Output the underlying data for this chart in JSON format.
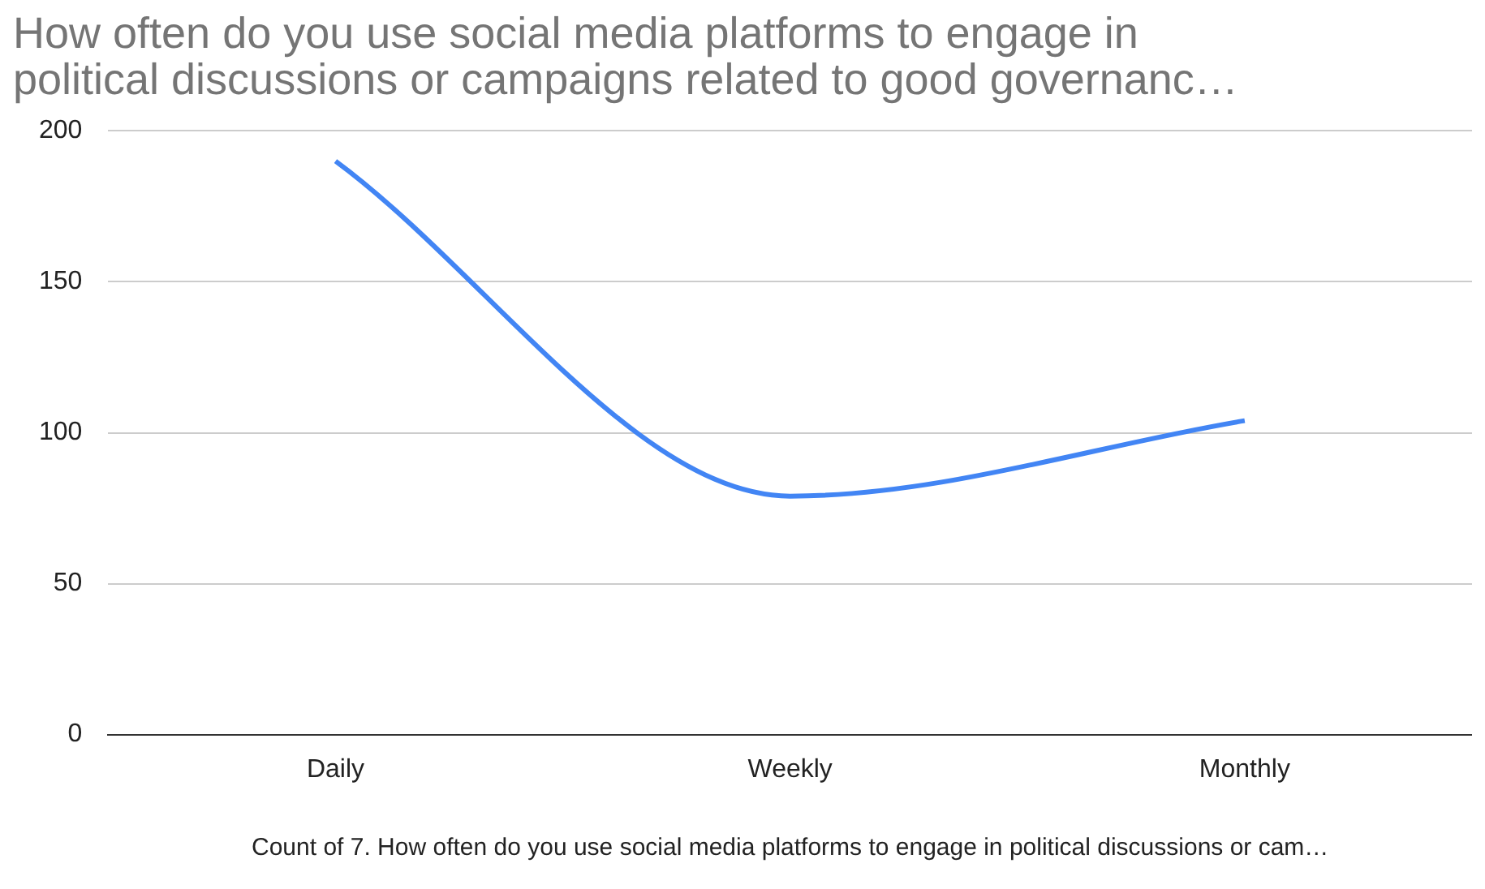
{
  "chart_data": {
    "type": "line",
    "title": "How often do you use social media platforms to engage in political discussions or campaigns related to good governanc…",
    "xlabel": "Count of 7. How often do you use social media platforms to engage in political discussions or cam…",
    "categories": [
      "Daily",
      "Weekly",
      "Monthly"
    ],
    "series": [
      {
        "color": "#4285f4",
        "values": [
          190,
          79,
          104
        ]
      }
    ],
    "ylim": [
      0,
      200
    ],
    "yticks": [
      0,
      50,
      100,
      150,
      200
    ],
    "grid": "y",
    "legend": false,
    "marker": "none"
  }
}
